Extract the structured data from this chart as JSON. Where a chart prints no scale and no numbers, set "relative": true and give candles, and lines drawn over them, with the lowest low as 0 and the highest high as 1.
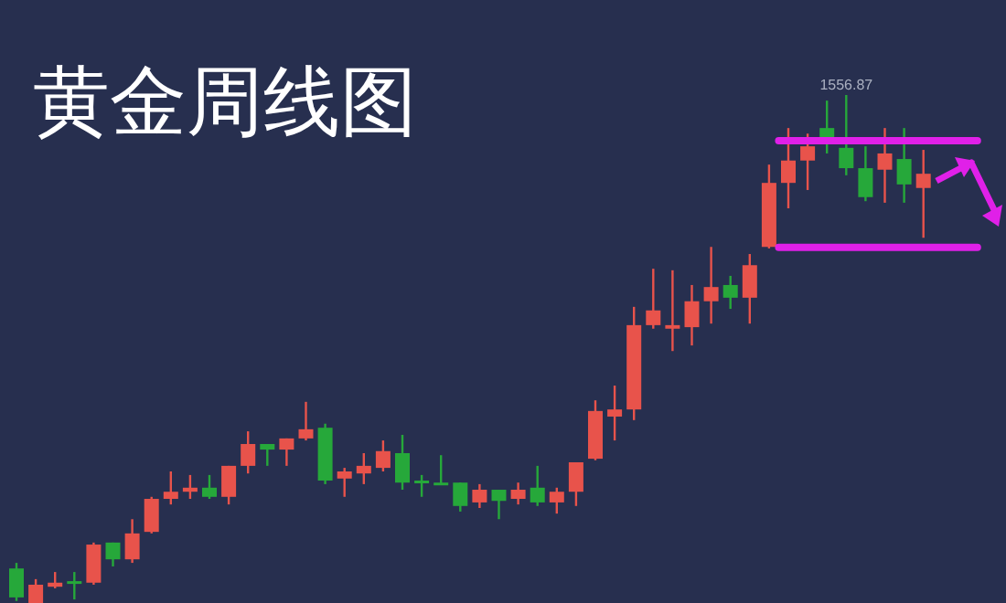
{
  "chart_data": {
    "type": "candlestick",
    "title": "黄金周线图",
    "relative": true,
    "categories": [
      null,
      null,
      null,
      null,
      null,
      null,
      null,
      null,
      null,
      null,
      null,
      null,
      null,
      null,
      null,
      null,
      null,
      null,
      null,
      null,
      null,
      null,
      null,
      null,
      null,
      null,
      null,
      null,
      null,
      null,
      null,
      null,
      null,
      null,
      null,
      null,
      null,
      null,
      null,
      null,
      null,
      null,
      null,
      null,
      null,
      null,
      null,
      null
    ],
    "ohlc": [
      [
        0.068,
        0.079,
        0.004,
        0.011
      ],
      [
        0,
        0.047,
        0,
        0.036
      ],
      [
        0.032,
        0.061,
        0.029,
        0.04
      ],
      [
        0.043,
        0.061,
        0.007,
        0.04
      ],
      [
        0.04,
        0.119,
        0.036,
        0.115
      ],
      [
        0.119,
        0.119,
        0.072,
        0.086
      ],
      [
        0.086,
        0.165,
        0.079,
        0.137
      ],
      [
        0.14,
        0.209,
        0.137,
        0.205
      ],
      [
        0.205,
        0.259,
        0.194,
        0.219
      ],
      [
        0.219,
        0.252,
        0.205,
        0.227
      ],
      [
        0.227,
        0.252,
        0.205,
        0.209
      ],
      [
        0.209,
        0.27,
        0.194,
        0.27
      ],
      [
        0.27,
        0.338,
        0.255,
        0.313
      ],
      [
        0.313,
        0.313,
        0.27,
        0.302
      ],
      [
        0.302,
        0.324,
        0.27,
        0.324
      ],
      [
        0.324,
        0.396,
        0.32,
        0.342
      ],
      [
        0.345,
        0.353,
        0.234,
        0.241
      ],
      [
        0.245,
        0.266,
        0.209,
        0.259
      ],
      [
        0.255,
        0.295,
        0.234,
        0.27
      ],
      [
        0.266,
        0.32,
        0.259,
        0.299
      ],
      [
        0.295,
        0.331,
        0.223,
        0.237
      ],
      [
        0.241,
        0.252,
        0.209,
        0.237
      ],
      [
        0.237,
        0.291,
        0.234,
        0.234
      ],
      [
        0.237,
        0.237,
        0.18,
        0.191
      ],
      [
        0.198,
        0.234,
        0.187,
        0.223
      ],
      [
        0.223,
        0.223,
        0.165,
        0.201
      ],
      [
        0.205,
        0.237,
        0.194,
        0.223
      ],
      [
        0.227,
        0.27,
        0.191,
        0.198
      ],
      [
        0.198,
        0.227,
        0.176,
        0.219
      ],
      [
        0.219,
        0.277,
        0.191,
        0.277
      ],
      [
        0.284,
        0.399,
        0.281,
        0.378
      ],
      [
        0.367,
        0.428,
        0.32,
        0.381
      ],
      [
        0.381,
        0.583,
        0.36,
        0.547
      ],
      [
        0.547,
        0.658,
        0.54,
        0.576
      ],
      [
        0.54,
        0.655,
        0.496,
        0.547
      ],
      [
        0.543,
        0.626,
        0.507,
        0.594
      ],
      [
        0.594,
        0.701,
        0.55,
        0.622
      ],
      [
        0.626,
        0.644,
        0.579,
        0.601
      ],
      [
        0.601,
        0.687,
        0.55,
        0.665
      ],
      [
        0.701,
        0.863,
        0.698,
        0.827
      ],
      [
        0.827,
        0.935,
        0.777,
        0.871
      ],
      [
        0.871,
        0.924,
        0.813,
        0.899
      ],
      [
        0.935,
        0.989,
        0.885,
        0.91
      ],
      [
        0.896,
        1,
        0.842,
        0.856
      ],
      [
        0.856,
        0.899,
        0.791,
        0.799
      ],
      [
        0.853,
        0.935,
        0.788,
        0.885
      ],
      [
        0.874,
        0.935,
        0.788,
        0.824
      ],
      [
        0.817,
        0.892,
        0.719,
        0.845
      ]
    ],
    "colors": [
      "#26a83a",
      "#e8534b",
      "#e8534b",
      "#26a83a",
      "#e8534b",
      "#26a83a",
      "#e8534b",
      "#e8534b",
      "#e8534b",
      "#e8534b",
      "#26a83a",
      "#e8534b",
      "#e8534b",
      "#26a83a",
      "#e8534b",
      "#e8534b",
      "#26a83a",
      "#e8534b",
      "#e8534b",
      "#e8534b",
      "#26a83a",
      "#26a83a",
      "#26a83a",
      "#26a83a",
      "#e8534b",
      "#26a83a",
      "#e8534b",
      "#26a83a",
      "#e8534b",
      "#e8534b",
      "#e8534b",
      "#e8534b",
      "#e8534b",
      "#e8534b",
      "#e8534b",
      "#e8534b",
      "#e8534b",
      "#26a83a",
      "#e8534b",
      "#e8534b",
      "#e8534b",
      "#e8534b",
      "#26a83a",
      "#26a83a",
      "#26a83a",
      "#e8534b",
      "#26a83a",
      "#e8534b"
    ],
    "annotations": [
      {
        "text": "1556.87",
        "y": 1
      }
    ],
    "ref_lines": [
      {
        "axis": "y",
        "value": 0.91,
        "color": "#e020e8"
      },
      {
        "axis": "y",
        "value": 0.7,
        "color": "#e020e8"
      }
    ]
  }
}
